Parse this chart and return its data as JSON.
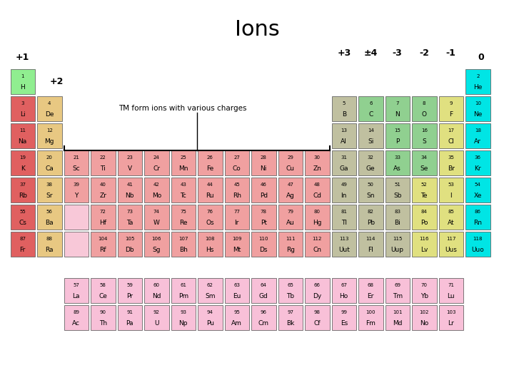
{
  "title": "Ions",
  "title_fontsize": 22,
  "background_color": "#ffffff",
  "tm_label_text": "TM form ions with various charges",
  "elements": [
    {
      "num": "1",
      "sym": "H",
      "row": 1,
      "col": 1,
      "color": "#90ee90"
    },
    {
      "num": "2",
      "sym": "He",
      "row": 1,
      "col": 18,
      "color": "#00e5e5"
    },
    {
      "num": "3",
      "sym": "Li",
      "row": 2,
      "col": 1,
      "color": "#e06060"
    },
    {
      "num": "4",
      "sym": "De",
      "row": 2,
      "col": 2,
      "color": "#e8c882"
    },
    {
      "num": "5",
      "sym": "B",
      "row": 2,
      "col": 13,
      "color": "#c0c0a0"
    },
    {
      "num": "6",
      "sym": "C",
      "row": 2,
      "col": 14,
      "color": "#90d090"
    },
    {
      "num": "7",
      "sym": "N",
      "row": 2,
      "col": 15,
      "color": "#90d090"
    },
    {
      "num": "8",
      "sym": "O",
      "row": 2,
      "col": 16,
      "color": "#90d090"
    },
    {
      "num": "9",
      "sym": "F",
      "row": 2,
      "col": 17,
      "color": "#e0e080"
    },
    {
      "num": "10",
      "sym": "Ne",
      "row": 2,
      "col": 18,
      "color": "#00e5e5"
    },
    {
      "num": "11",
      "sym": "Na",
      "row": 3,
      "col": 1,
      "color": "#e06060"
    },
    {
      "num": "12",
      "sym": "Mg",
      "row": 3,
      "col": 2,
      "color": "#e8c882"
    },
    {
      "num": "13",
      "sym": "Al",
      "row": 3,
      "col": 13,
      "color": "#c0c0a0"
    },
    {
      "num": "14",
      "sym": "Si",
      "row": 3,
      "col": 14,
      "color": "#c0c0a0"
    },
    {
      "num": "15",
      "sym": "P",
      "row": 3,
      "col": 15,
      "color": "#90d090"
    },
    {
      "num": "16",
      "sym": "S",
      "row": 3,
      "col": 16,
      "color": "#90d090"
    },
    {
      "num": "17",
      "sym": "Cl",
      "row": 3,
      "col": 17,
      "color": "#e0e080"
    },
    {
      "num": "18",
      "sym": "Ar",
      "row": 3,
      "col": 18,
      "color": "#00e5e5"
    },
    {
      "num": "19",
      "sym": "K",
      "row": 4,
      "col": 1,
      "color": "#e06060"
    },
    {
      "num": "20",
      "sym": "Ca",
      "row": 4,
      "col": 2,
      "color": "#e8c882"
    },
    {
      "num": "21",
      "sym": "Sc",
      "row": 4,
      "col": 3,
      "color": "#f0a0a0"
    },
    {
      "num": "22",
      "sym": "Ti",
      "row": 4,
      "col": 4,
      "color": "#f0a0a0"
    },
    {
      "num": "23",
      "sym": "V",
      "row": 4,
      "col": 5,
      "color": "#f0a0a0"
    },
    {
      "num": "24",
      "sym": "Cr",
      "row": 4,
      "col": 6,
      "color": "#f0a0a0"
    },
    {
      "num": "25",
      "sym": "Mn",
      "row": 4,
      "col": 7,
      "color": "#f0a0a0"
    },
    {
      "num": "26",
      "sym": "Fe",
      "row": 4,
      "col": 8,
      "color": "#f0a0a0"
    },
    {
      "num": "27",
      "sym": "Co",
      "row": 4,
      "col": 9,
      "color": "#f0a0a0"
    },
    {
      "num": "28",
      "sym": "Ni",
      "row": 4,
      "col": 10,
      "color": "#f0a0a0"
    },
    {
      "num": "29",
      "sym": "Cu",
      "row": 4,
      "col": 11,
      "color": "#f0a0a0"
    },
    {
      "num": "30",
      "sym": "Zn",
      "row": 4,
      "col": 12,
      "color": "#f0a0a0"
    },
    {
      "num": "31",
      "sym": "Ga",
      "row": 4,
      "col": 13,
      "color": "#c0c0a0"
    },
    {
      "num": "32",
      "sym": "Ge",
      "row": 4,
      "col": 14,
      "color": "#c0c0a0"
    },
    {
      "num": "33",
      "sym": "As",
      "row": 4,
      "col": 15,
      "color": "#90d090"
    },
    {
      "num": "34",
      "sym": "Se",
      "row": 4,
      "col": 16,
      "color": "#90d090"
    },
    {
      "num": "35",
      "sym": "Br",
      "row": 4,
      "col": 17,
      "color": "#e0e080"
    },
    {
      "num": "36",
      "sym": "Kr",
      "row": 4,
      "col": 18,
      "color": "#00e5e5"
    },
    {
      "num": "37",
      "sym": "Rb",
      "row": 5,
      "col": 1,
      "color": "#e06060"
    },
    {
      "num": "38",
      "sym": "Sr",
      "row": 5,
      "col": 2,
      "color": "#e8c882"
    },
    {
      "num": "39",
      "sym": "Y",
      "row": 5,
      "col": 3,
      "color": "#f0a0a0"
    },
    {
      "num": "40",
      "sym": "Zr",
      "row": 5,
      "col": 4,
      "color": "#f0a0a0"
    },
    {
      "num": "41",
      "sym": "Nb",
      "row": 5,
      "col": 5,
      "color": "#f0a0a0"
    },
    {
      "num": "42",
      "sym": "Mo",
      "row": 5,
      "col": 6,
      "color": "#f0a0a0"
    },
    {
      "num": "43",
      "sym": "Tc",
      "row": 5,
      "col": 7,
      "color": "#f0a0a0"
    },
    {
      "num": "44",
      "sym": "Ru",
      "row": 5,
      "col": 8,
      "color": "#f0a0a0"
    },
    {
      "num": "45",
      "sym": "Rh",
      "row": 5,
      "col": 9,
      "color": "#f0a0a0"
    },
    {
      "num": "46",
      "sym": "Pd",
      "row": 5,
      "col": 10,
      "color": "#f0a0a0"
    },
    {
      "num": "47",
      "sym": "Ag",
      "row": 5,
      "col": 11,
      "color": "#f0a0a0"
    },
    {
      "num": "48",
      "sym": "Cd",
      "row": 5,
      "col": 12,
      "color": "#f0a0a0"
    },
    {
      "num": "49",
      "sym": "In",
      "row": 5,
      "col": 13,
      "color": "#c0c0a0"
    },
    {
      "num": "50",
      "sym": "Sn",
      "row": 5,
      "col": 14,
      "color": "#c0c0a0"
    },
    {
      "num": "51",
      "sym": "Sb",
      "row": 5,
      "col": 15,
      "color": "#c0c0a0"
    },
    {
      "num": "52",
      "sym": "Te",
      "row": 5,
      "col": 16,
      "color": "#e0e080"
    },
    {
      "num": "53",
      "sym": "I",
      "row": 5,
      "col": 17,
      "color": "#e0e080"
    },
    {
      "num": "54",
      "sym": "Xe",
      "row": 5,
      "col": 18,
      "color": "#00e5e5"
    },
    {
      "num": "55",
      "sym": "Cs",
      "row": 6,
      "col": 1,
      "color": "#e06060"
    },
    {
      "num": "56",
      "sym": "Ba",
      "row": 6,
      "col": 2,
      "color": "#e8c882"
    },
    {
      "num": "*",
      "sym": "",
      "row": 6,
      "col": 3,
      "color": "#f8c8d8",
      "placeholder": true
    },
    {
      "num": "72",
      "sym": "Hf",
      "row": 6,
      "col": 4,
      "color": "#f0a0a0"
    },
    {
      "num": "73",
      "sym": "Ta",
      "row": 6,
      "col": 5,
      "color": "#f0a0a0"
    },
    {
      "num": "74",
      "sym": "W",
      "row": 6,
      "col": 6,
      "color": "#f0a0a0"
    },
    {
      "num": "75",
      "sym": "Re",
      "row": 6,
      "col": 7,
      "color": "#f0a0a0"
    },
    {
      "num": "76",
      "sym": "Os",
      "row": 6,
      "col": 8,
      "color": "#f0a0a0"
    },
    {
      "num": "77",
      "sym": "Ir",
      "row": 6,
      "col": 9,
      "color": "#f0a0a0"
    },
    {
      "num": "78",
      "sym": "Pt",
      "row": 6,
      "col": 10,
      "color": "#f0a0a0"
    },
    {
      "num": "79",
      "sym": "Au",
      "row": 6,
      "col": 11,
      "color": "#f0a0a0"
    },
    {
      "num": "80",
      "sym": "Hg",
      "row": 6,
      "col": 12,
      "color": "#f0a0a0"
    },
    {
      "num": "81",
      "sym": "Tl",
      "row": 6,
      "col": 13,
      "color": "#c0c0a0"
    },
    {
      "num": "82",
      "sym": "Pb",
      "row": 6,
      "col": 14,
      "color": "#c0c0a0"
    },
    {
      "num": "83",
      "sym": "Bi",
      "row": 6,
      "col": 15,
      "color": "#c0c0a0"
    },
    {
      "num": "84",
      "sym": "Po",
      "row": 6,
      "col": 16,
      "color": "#e0e080"
    },
    {
      "num": "85",
      "sym": "At",
      "row": 6,
      "col": 17,
      "color": "#e0e080"
    },
    {
      "num": "86",
      "sym": "Rn",
      "row": 6,
      "col": 18,
      "color": "#00e5e5"
    },
    {
      "num": "87",
      "sym": "Fr",
      "row": 7,
      "col": 1,
      "color": "#e06060"
    },
    {
      "num": "88",
      "sym": "Ra",
      "row": 7,
      "col": 2,
      "color": "#e8c882"
    },
    {
      "num": "**",
      "sym": "",
      "row": 7,
      "col": 3,
      "color": "#f8c8d8",
      "placeholder": true
    },
    {
      "num": "104",
      "sym": "Rf",
      "row": 7,
      "col": 4,
      "color": "#f0a0a0"
    },
    {
      "num": "105",
      "sym": "Db",
      "row": 7,
      "col": 5,
      "color": "#f0a0a0"
    },
    {
      "num": "106",
      "sym": "Sg",
      "row": 7,
      "col": 6,
      "color": "#f0a0a0"
    },
    {
      "num": "107",
      "sym": "Bh",
      "row": 7,
      "col": 7,
      "color": "#f0a0a0"
    },
    {
      "num": "108",
      "sym": "Hs",
      "row": 7,
      "col": 8,
      "color": "#f0a0a0"
    },
    {
      "num": "109",
      "sym": "Mt",
      "row": 7,
      "col": 9,
      "color": "#f0a0a0"
    },
    {
      "num": "110",
      "sym": "Ds",
      "row": 7,
      "col": 10,
      "color": "#f0a0a0"
    },
    {
      "num": "111",
      "sym": "Rg",
      "row": 7,
      "col": 11,
      "color": "#f0a0a0"
    },
    {
      "num": "112",
      "sym": "Cn",
      "row": 7,
      "col": 12,
      "color": "#f0a0a0"
    },
    {
      "num": "113",
      "sym": "Uut",
      "row": 7,
      "col": 13,
      "color": "#c0c0a0"
    },
    {
      "num": "114",
      "sym": "Fl",
      "row": 7,
      "col": 14,
      "color": "#c0c0a0"
    },
    {
      "num": "115",
      "sym": "Uup",
      "row": 7,
      "col": 15,
      "color": "#c0c0a0"
    },
    {
      "num": "116",
      "sym": "Lv",
      "row": 7,
      "col": 16,
      "color": "#e0e080"
    },
    {
      "num": "117",
      "sym": "Uus",
      "row": 7,
      "col": 17,
      "color": "#e0e080"
    },
    {
      "num": "118",
      "sym": "Uuo",
      "row": 7,
      "col": 18,
      "color": "#00e5e5"
    },
    {
      "num": "57",
      "sym": "La",
      "row": 9,
      "col": 3,
      "color": "#f8c0d8"
    },
    {
      "num": "58",
      "sym": "Ce",
      "row": 9,
      "col": 4,
      "color": "#f8c0d8"
    },
    {
      "num": "59",
      "sym": "Pr",
      "row": 9,
      "col": 5,
      "color": "#f8c0d8"
    },
    {
      "num": "60",
      "sym": "Nd",
      "row": 9,
      "col": 6,
      "color": "#f8c0d8"
    },
    {
      "num": "61",
      "sym": "Pm",
      "row": 9,
      "col": 7,
      "color": "#f8c0d8"
    },
    {
      "num": "62",
      "sym": "Sm",
      "row": 9,
      "col": 8,
      "color": "#f8c0d8"
    },
    {
      "num": "63",
      "sym": "Eu",
      "row": 9,
      "col": 9,
      "color": "#f8c0d8"
    },
    {
      "num": "64",
      "sym": "Gd",
      "row": 9,
      "col": 10,
      "color": "#f8c0d8"
    },
    {
      "num": "65",
      "sym": "Tb",
      "row": 9,
      "col": 11,
      "color": "#f8c0d8"
    },
    {
      "num": "66",
      "sym": "Dy",
      "row": 9,
      "col": 12,
      "color": "#f8c0d8"
    },
    {
      "num": "67",
      "sym": "Ho",
      "row": 9,
      "col": 13,
      "color": "#f8c0d8"
    },
    {
      "num": "68",
      "sym": "Er",
      "row": 9,
      "col": 14,
      "color": "#f8c0d8"
    },
    {
      "num": "69",
      "sym": "Tm",
      "row": 9,
      "col": 15,
      "color": "#f8c0d8"
    },
    {
      "num": "70",
      "sym": "Yb",
      "row": 9,
      "col": 16,
      "color": "#f8c0d8"
    },
    {
      "num": "71",
      "sym": "Lu",
      "row": 9,
      "col": 17,
      "color": "#f8c0d8"
    },
    {
      "num": "89",
      "sym": "Ac",
      "row": 10,
      "col": 3,
      "color": "#f8c0d8"
    },
    {
      "num": "90",
      "sym": "Th",
      "row": 10,
      "col": 4,
      "color": "#f8c0d8"
    },
    {
      "num": "91",
      "sym": "Pa",
      "row": 10,
      "col": 5,
      "color": "#f8c0d8"
    },
    {
      "num": "92",
      "sym": "U",
      "row": 10,
      "col": 6,
      "color": "#f8c0d8"
    },
    {
      "num": "93",
      "sym": "Np",
      "row": 10,
      "col": 7,
      "color": "#f8c0d8"
    },
    {
      "num": "94",
      "sym": "Pu",
      "row": 10,
      "col": 8,
      "color": "#f8c0d8"
    },
    {
      "num": "95",
      "sym": "Am",
      "row": 10,
      "col": 9,
      "color": "#f8c0d8"
    },
    {
      "num": "96",
      "sym": "Cm",
      "row": 10,
      "col": 10,
      "color": "#f8c0d8"
    },
    {
      "num": "97",
      "sym": "Bk",
      "row": 10,
      "col": 11,
      "color": "#f8c0d8"
    },
    {
      "num": "98",
      "sym": "Cf",
      "row": 10,
      "col": 12,
      "color": "#f8c0d8"
    },
    {
      "num": "99",
      "sym": "Es",
      "row": 10,
      "col": 13,
      "color": "#f8c0d8"
    },
    {
      "num": "100",
      "sym": "Fm",
      "row": 10,
      "col": 14,
      "color": "#f8c0d8"
    },
    {
      "num": "101",
      "sym": "Md",
      "row": 10,
      "col": 15,
      "color": "#f8c0d8"
    },
    {
      "num": "102",
      "sym": "No",
      "row": 10,
      "col": 16,
      "color": "#f8c0d8"
    },
    {
      "num": "103",
      "sym": "Lr",
      "row": 10,
      "col": 17,
      "color": "#f8c0d8"
    }
  ]
}
